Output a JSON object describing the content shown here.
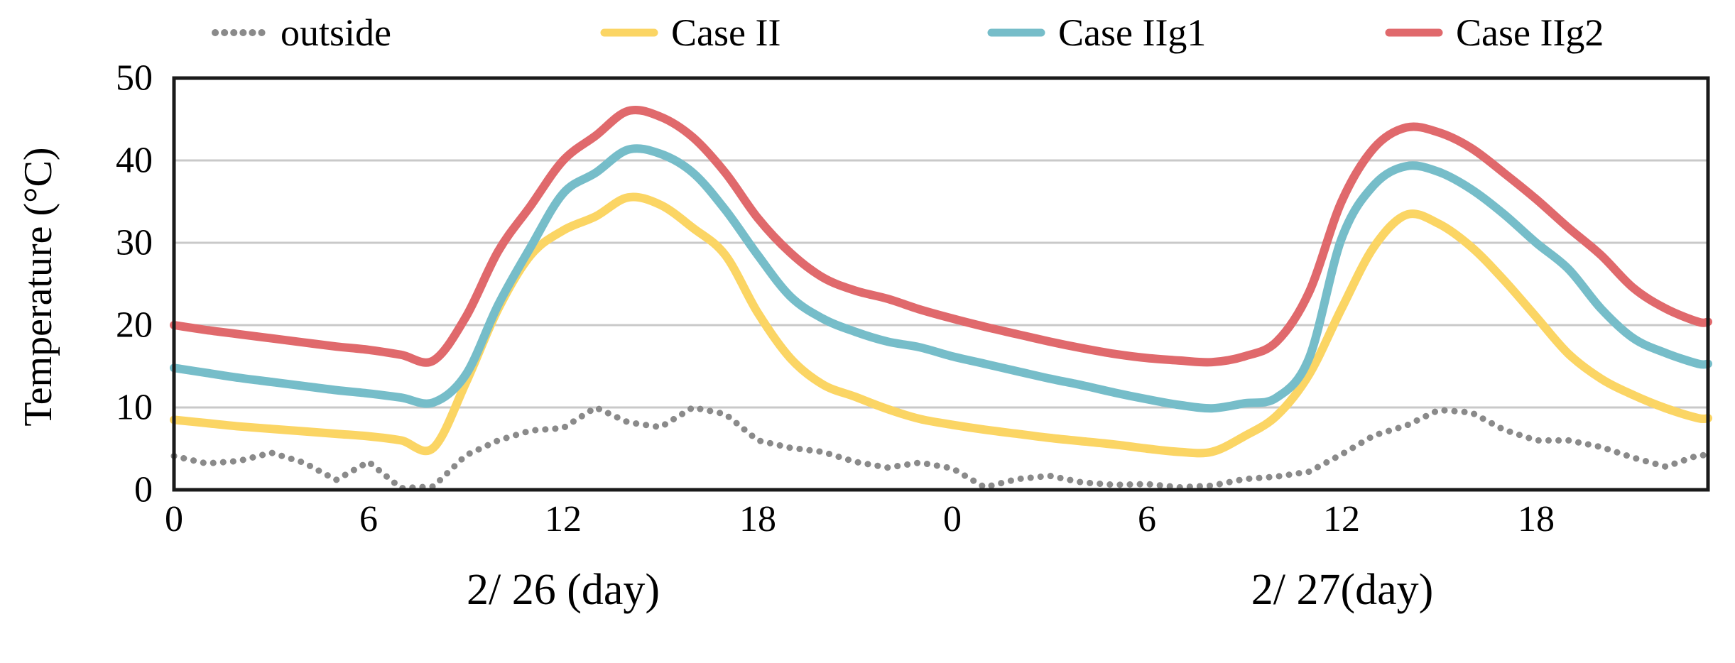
{
  "chart_data": {
    "type": "line",
    "title": "",
    "ylabel": "Temperature (°C)",
    "xlabel_day1": "2/ 26 (day)",
    "xlabel_day2": "2/ 27(day)",
    "ylim": [
      0,
      50
    ],
    "y_ticks": [
      0,
      10,
      20,
      30,
      40,
      50
    ],
    "x_hours_span": 47.3,
    "x_unit": "hour",
    "grid": true,
    "legend_position": "top",
    "grid_color": "#c9c9c9",
    "frame_color": "#1a1a1a",
    "x_ticks": [
      {
        "hour": 0,
        "label": "0"
      },
      {
        "hour": 6,
        "label": "6"
      },
      {
        "hour": 12,
        "label": "12"
      },
      {
        "hour": 18,
        "label": "18"
      },
      {
        "hour": 24,
        "label": "0"
      },
      {
        "hour": 30,
        "label": "6"
      },
      {
        "hour": 36,
        "label": "12"
      },
      {
        "hour": 42,
        "label": "18"
      }
    ],
    "series": [
      {
        "name": "outside",
        "color": "#8a8a8a",
        "style": "dotted",
        "values": [
          4.1,
          3.2,
          3.5,
          4.5,
          3.3,
          1.2,
          3.4,
          0.2,
          0.4,
          4.2,
          6.0,
          7.2,
          7.5,
          10.0,
          8.2,
          7.6,
          10.0,
          9.2,
          6.0,
          5.1,
          4.6,
          3.4,
          2.7,
          3.3,
          2.6,
          0.3,
          1.3,
          1.7,
          0.9,
          0.6,
          0.7,
          0.3,
          0.5,
          1.3,
          1.6,
          2.2,
          4.3,
          6.6,
          7.8,
          9.7,
          9.4,
          7.3,
          6.0,
          6.0,
          5.2,
          3.9,
          2.8,
          4.2
        ]
      },
      {
        "name": "Case II",
        "color": "#FBD564",
        "style": "solid",
        "values": [
          8.5,
          8.1,
          7.7,
          7.4,
          7.1,
          6.8,
          6.5,
          6.0,
          5.1,
          13.0,
          22.0,
          28.5,
          31.5,
          33.2,
          35.5,
          34.6,
          31.8,
          28.5,
          21.5,
          16.0,
          12.8,
          11.3,
          9.8,
          8.6,
          7.9,
          7.3,
          6.8,
          6.3,
          5.9,
          5.5,
          5.0,
          4.6,
          4.6,
          6.5,
          9.0,
          14.0,
          22.0,
          29.5,
          33.4,
          32.3,
          29.5,
          25.5,
          21.0,
          16.5,
          13.5,
          11.5,
          9.9,
          8.7
        ]
      },
      {
        "name": "Case IIg1",
        "color": "#76BDC9",
        "style": "solid",
        "values": [
          14.8,
          14.2,
          13.6,
          13.1,
          12.6,
          12.1,
          11.7,
          11.2,
          10.6,
          14.0,
          22.5,
          29.5,
          36.0,
          38.5,
          41.3,
          40.8,
          38.5,
          34.0,
          28.5,
          23.5,
          20.8,
          19.2,
          18.0,
          17.3,
          16.2,
          15.3,
          14.4,
          13.5,
          12.7,
          11.8,
          11.0,
          10.3,
          9.9,
          10.5,
          11.2,
          16.0,
          30.5,
          37.0,
          39.3,
          38.6,
          36.5,
          33.5,
          30.0,
          26.8,
          22.0,
          18.4,
          16.6,
          15.3
        ]
      },
      {
        "name": "Case IIg2",
        "color": "#E0696C",
        "style": "solid",
        "values": [
          20.0,
          19.4,
          18.9,
          18.4,
          17.9,
          17.4,
          17.0,
          16.4,
          15.7,
          21.0,
          29.0,
          34.5,
          40.0,
          43.0,
          46.0,
          45.3,
          42.8,
          38.5,
          33.0,
          28.8,
          25.8,
          24.2,
          23.2,
          21.9,
          20.8,
          19.8,
          18.9,
          18.0,
          17.2,
          16.5,
          16.0,
          15.7,
          15.5,
          16.2,
          18.0,
          24.0,
          35.0,
          41.5,
          44.0,
          43.4,
          41.5,
          38.5,
          35.3,
          31.8,
          28.5,
          24.5,
          22.0,
          20.4
        ]
      }
    ]
  }
}
